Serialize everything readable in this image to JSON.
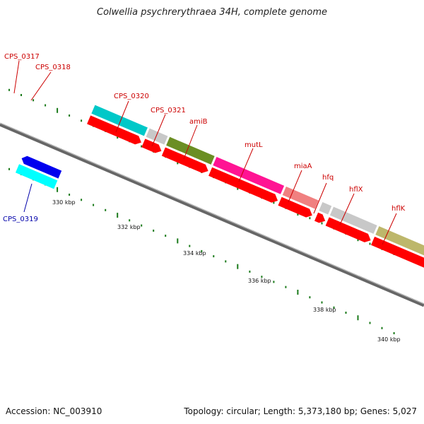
{
  "header": {
    "title": "Colwellia psychrerythraea 34H, complete genome"
  },
  "footer": {
    "accession": "Accession: NC_003910",
    "stats": "Topology: circular; Length: 5,373,180 bp; Genes: 5,027"
  },
  "colors": {
    "backbone": "#7a7a7a",
    "tick": "#1a7a1a",
    "label_plus": "#cc0000",
    "label_minus": "#0000aa",
    "cds": "#ff0000",
    "grey_gene": "#c8c8c8"
  },
  "scale_labels": [
    "330 kbp",
    "332 kbp",
    "334 kbp",
    "336 kbp",
    "338 kbp",
    "340 kbp"
  ],
  "gene_labels": [
    {
      "name": "CPS_0317",
      "strand": "plus"
    },
    {
      "name": "CPS_0318",
      "strand": "plus"
    },
    {
      "name": "CPS_0319",
      "strand": "minus"
    },
    {
      "name": "CPS_0320",
      "strand": "plus"
    },
    {
      "name": "CPS_0321",
      "strand": "plus"
    },
    {
      "name": "amiB",
      "strand": "plus"
    },
    {
      "name": "mutL",
      "strand": "plus"
    },
    {
      "name": "miaA",
      "strand": "plus"
    },
    {
      "name": "hfq",
      "strand": "plus"
    },
    {
      "name": "hflX",
      "strand": "plus"
    },
    {
      "name": "hflK",
      "strand": "plus"
    }
  ],
  "gene_colors": {
    "CPS_0317": "#c8c8c8",
    "CPS_0318": "#ff0000",
    "CPS_0319": "#00ffff",
    "CPS_0319_cds": "#0000ee",
    "CPS_0320": "#00c8c8",
    "CPS_0321": "#c8c8c8",
    "amiB": "#6b8e23",
    "mutL": "#ff1493",
    "miaA": "#f08080",
    "hfq": "#c8c8c8",
    "hflX": "#c8c8c8",
    "hflK": "#bdb76b"
  }
}
